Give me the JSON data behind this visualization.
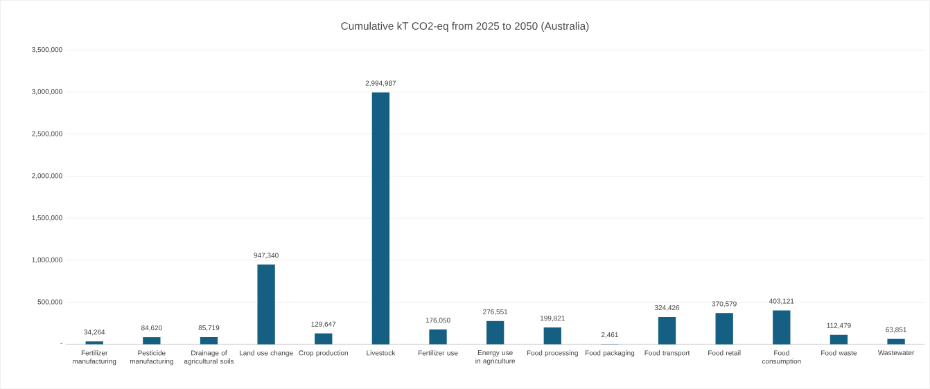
{
  "chart_data": {
    "type": "bar",
    "title": "Cumulative kT CO2-eq from 2025 to 2050 (Australia)",
    "categories": [
      "Fertilizer manufacturing",
      "Pesticide manufacturing",
      "Drainage of agricultural soils",
      "Land use change",
      "Crop production",
      "Livestock",
      "Fertilizer use",
      "Energy use in agriculture",
      "Food processing",
      "Food packaging",
      "Food transport",
      "Food retail",
      "Food consumption",
      "Food waste",
      "Wastewater"
    ],
    "values": [
      34264,
      84620,
      85719,
      947340,
      129647,
      2994987,
      176050,
      276551,
      199821,
      2461,
      324426,
      370579,
      403121,
      112479,
      63851
    ],
    "value_labels": [
      "34,264",
      "84,620",
      "85,719",
      "947,340",
      "129,647",
      "2,994,987",
      "176,050",
      "276,551",
      "199,821",
      "2,461",
      "324,426",
      "370,579",
      "403,121",
      "112,479",
      "63,851"
    ],
    "color": "#156082",
    "ylim": [
      0,
      3500000
    ],
    "yticks": [
      {
        "value": 0,
        "label": "-"
      },
      {
        "value": 500000,
        "label": "500,000"
      },
      {
        "value": 1000000,
        "label": "1,000,000"
      },
      {
        "value": 1500000,
        "label": "1,500,000"
      },
      {
        "value": 2000000,
        "label": "2,000,000"
      },
      {
        "value": 2500000,
        "label": "2,500,000"
      },
      {
        "value": 3000000,
        "label": "3,000,000"
      },
      {
        "value": 3500000,
        "label": "3,500,000"
      }
    ],
    "grid": "y"
  }
}
